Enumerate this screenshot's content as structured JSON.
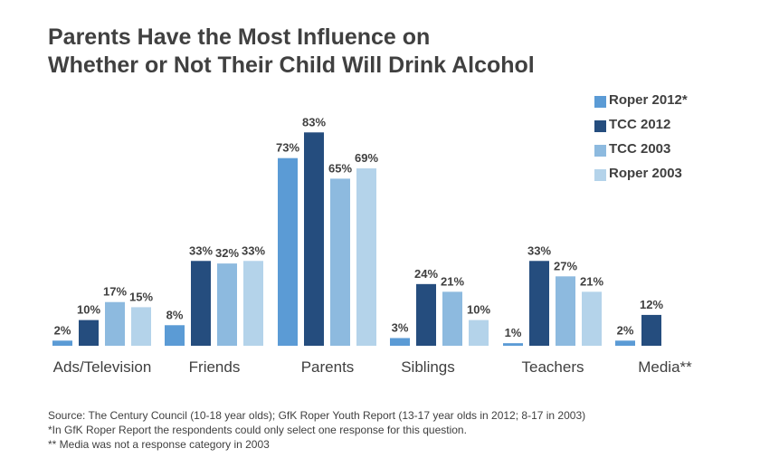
{
  "title_lines": [
    "Parents Have the Most Influence on",
    "Whether or Not Their Child Will Drink Alcohol"
  ],
  "chart_data": {
    "type": "bar",
    "title": "Parents Have the Most Influence on Whether or Not Their Child Will Drink Alcohol",
    "categories": [
      "Ads/Television",
      "Friends",
      "Parents",
      "Siblings",
      "Teachers",
      "Media**"
    ],
    "series": [
      {
        "name": "Roper 2012*",
        "color": "#5b9bd5",
        "values": [
          2,
          8,
          73,
          3,
          1,
          2
        ]
      },
      {
        "name": "TCC 2012",
        "color": "#254d7e",
        "values": [
          10,
          33,
          83,
          24,
          33,
          12
        ]
      },
      {
        "name": "TCC 2003",
        "color": "#8dbadf",
        "values": [
          17,
          32,
          65,
          21,
          27,
          null
        ]
      },
      {
        "name": "Roper 2003",
        "color": "#b4d3ea",
        "values": [
          15,
          33,
          69,
          10,
          21,
          null
        ]
      }
    ],
    "value_suffix": "%",
    "ylim": [
      0,
      90
    ],
    "grid": false,
    "legend_position": "top-right"
  },
  "footnotes": [
    "Source: The Century Council (10-18 year olds); GfK Roper Youth Report (13-17 year olds in 2012; 8-17 in 2003)",
    "*In GfK Roper Report the respondents could only select one response for this question.",
    "** Media was not a response category in 2003"
  ]
}
